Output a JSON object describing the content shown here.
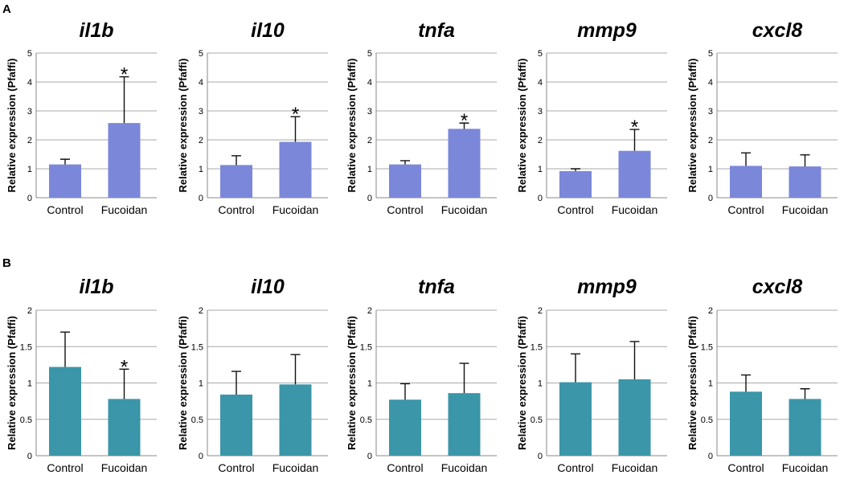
{
  "panels": [
    {
      "label": "A",
      "bar_color": "#7b87d9",
      "charts": [
        {
          "type": "bar",
          "title": "il1b",
          "ylabel": "Relative expression (Pfaffi)",
          "ylim": [
            0,
            5
          ],
          "yticks": [
            "0",
            "1",
            "2",
            "3",
            "4",
            "5"
          ],
          "categories": [
            "Control",
            "Fucoidan"
          ],
          "values": [
            1.15,
            2.58
          ],
          "errors": [
            0.18,
            1.6
          ],
          "significance": [
            "",
            "*"
          ]
        },
        {
          "type": "bar",
          "title": "il10",
          "ylabel": "Relative expression (Pfaffi)",
          "ylim": [
            0,
            5
          ],
          "yticks": [
            "0",
            "1",
            "2",
            "3",
            "4",
            "5"
          ],
          "categories": [
            "Control",
            "Fucoidan"
          ],
          "values": [
            1.13,
            1.93
          ],
          "errors": [
            0.32,
            0.87
          ],
          "significance": [
            "",
            "*"
          ]
        },
        {
          "type": "bar",
          "title": "tnfa",
          "ylabel": "Relative expression (Pfaffi)",
          "ylim": [
            0,
            5
          ],
          "yticks": [
            "0",
            "1",
            "2",
            "3",
            "4",
            "5"
          ],
          "categories": [
            "Control",
            "Fucoidan"
          ],
          "values": [
            1.15,
            2.38
          ],
          "errors": [
            0.13,
            0.2
          ],
          "significance": [
            "",
            "*"
          ]
        },
        {
          "type": "bar",
          "title": "mmp9",
          "ylabel": "Relative expression (Pfaffi)",
          "ylim": [
            0,
            5
          ],
          "yticks": [
            "0",
            "1",
            "2",
            "3",
            "4",
            "5"
          ],
          "categories": [
            "Control",
            "Fucoidan"
          ],
          "values": [
            0.92,
            1.62
          ],
          "errors": [
            0.08,
            0.74
          ],
          "significance": [
            "",
            "*"
          ]
        },
        {
          "type": "bar",
          "title": "cxcl8",
          "ylabel": "Relative expression (Pfaffi)",
          "ylim": [
            0,
            5
          ],
          "yticks": [
            "0",
            "1",
            "2",
            "3",
            "4",
            "5"
          ],
          "categories": [
            "Control",
            "Fucoidan"
          ],
          "values": [
            1.1,
            1.08
          ],
          "errors": [
            0.45,
            0.4
          ],
          "significance": [
            "",
            ""
          ]
        }
      ]
    },
    {
      "label": "B",
      "bar_color": "#3a96a8",
      "charts": [
        {
          "type": "bar",
          "title": "il1b",
          "ylabel": "Relative expression (Pfaffi)",
          "ylim": [
            0,
            2
          ],
          "yticks": [
            "0",
            "0.5",
            "1",
            "1.5",
            "2"
          ],
          "categories": [
            "Control",
            "Fucoidan"
          ],
          "values": [
            1.22,
            0.78
          ],
          "errors": [
            0.48,
            0.41
          ],
          "significance": [
            "",
            "*"
          ]
        },
        {
          "type": "bar",
          "title": "il10",
          "ylabel": "Relative expression (Pfaffi)",
          "ylim": [
            0,
            2
          ],
          "yticks": [
            "0",
            "0.5",
            "1",
            "1.5",
            "2"
          ],
          "categories": [
            "Control",
            "Fucoidan"
          ],
          "values": [
            0.84,
            0.98
          ],
          "errors": [
            0.32,
            0.41
          ],
          "significance": [
            "",
            ""
          ]
        },
        {
          "type": "bar",
          "title": "tnfa",
          "ylabel": "Relative expression (Pfaffi)",
          "ylim": [
            0,
            2
          ],
          "yticks": [
            "0",
            "0.5",
            "1",
            "1.5",
            "2"
          ],
          "categories": [
            "Control",
            "Fucoidan"
          ],
          "values": [
            0.77,
            0.86
          ],
          "errors": [
            0.22,
            0.41
          ],
          "significance": [
            "",
            ""
          ]
        },
        {
          "type": "bar",
          "title": "mmp9",
          "ylabel": "Relative expression (Pfaffi)",
          "ylim": [
            0,
            2
          ],
          "yticks": [
            "0",
            "0.5",
            "1",
            "1.5",
            "2"
          ],
          "categories": [
            "Control",
            "Fucoidan"
          ],
          "values": [
            1.01,
            1.05
          ],
          "errors": [
            0.39,
            0.52
          ],
          "significance": [
            "",
            ""
          ]
        },
        {
          "type": "bar",
          "title": "cxcl8",
          "ylabel": "Relative expression (Pfaffi)",
          "ylim": [
            0,
            2
          ],
          "yticks": [
            "0",
            "0.5",
            "1",
            "1.5",
            "2"
          ],
          "categories": [
            "Control",
            "Fucoidan"
          ],
          "values": [
            0.88,
            0.78
          ],
          "errors": [
            0.23,
            0.14
          ],
          "significance": [
            "",
            ""
          ]
        }
      ]
    }
  ]
}
